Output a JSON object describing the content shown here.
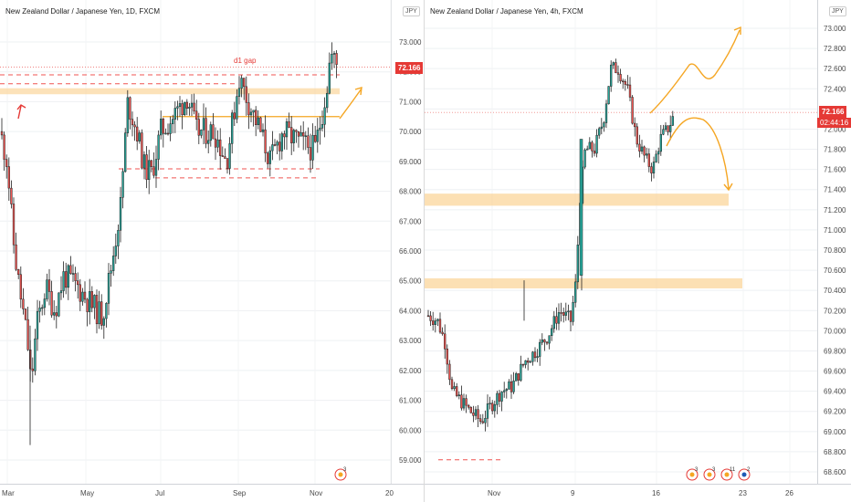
{
  "left_chart": {
    "title": "New Zealand Dollar / Japanese Yen, 1D, FXCM",
    "currency": "JPY",
    "current_price": "72.166",
    "annotation": "d1 gap",
    "yaxis": [
      {
        "label": "73.000",
        "value": 73.0
      },
      {
        "label": "72.000",
        "value": 72.0
      },
      {
        "label": "71.000",
        "value": 71.0
      },
      {
        "label": "70.000",
        "value": 70.0
      },
      {
        "label": "69.000",
        "value": 69.0
      },
      {
        "label": "68.000",
        "value": 68.0
      },
      {
        "label": "67.000",
        "value": 67.0
      },
      {
        "label": "66.000",
        "value": 66.0
      },
      {
        "label": "65.000",
        "value": 65.0
      },
      {
        "label": "64.000",
        "value": 64.0
      },
      {
        "label": "63.000",
        "value": 63.0
      },
      {
        "label": "62.000",
        "value": 62.0
      },
      {
        "label": "61.000",
        "value": 61.0
      },
      {
        "label": "60.000",
        "value": 60.0
      },
      {
        "label": "59.000",
        "value": 59.0
      }
    ],
    "xaxis": [
      "Mar",
      "May",
      "Jul",
      "Sep",
      "Nov",
      "20"
    ],
    "event_badge": "3",
    "colors": {
      "up": "#26a69a",
      "down": "#ef5350",
      "candle": "#1a1a1a",
      "zone": "#fbd69b",
      "arrow": "#f5a623",
      "price_line": "#e53935"
    }
  },
  "right_chart": {
    "title": "New Zealand Dollar / Japanese Yen, 4h, FXCM",
    "currency": "JPY",
    "current_price": "72.166",
    "countdown": "02:44:16",
    "yaxis": [
      {
        "label": "73.000",
        "value": 73.0
      },
      {
        "label": "72.800",
        "value": 72.8
      },
      {
        "label": "72.600",
        "value": 72.6
      },
      {
        "label": "72.400",
        "value": 72.4
      },
      {
        "label": "72.200",
        "value": 72.2
      },
      {
        "label": "72.000",
        "value": 72.0
      },
      {
        "label": "71.800",
        "value": 71.8
      },
      {
        "label": "71.600",
        "value": 71.6
      },
      {
        "label": "71.400",
        "value": 71.4
      },
      {
        "label": "71.200",
        "value": 71.2
      },
      {
        "label": "71.000",
        "value": 71.0
      },
      {
        "label": "70.800",
        "value": 70.8
      },
      {
        "label": "70.600",
        "value": 70.6
      },
      {
        "label": "70.400",
        "value": 70.4
      },
      {
        "label": "70.200",
        "value": 70.2
      },
      {
        "label": "70.000",
        "value": 70.0
      },
      {
        "label": "69.800",
        "value": 69.8
      },
      {
        "label": "69.600",
        "value": 69.6
      },
      {
        "label": "69.400",
        "value": 69.4
      },
      {
        "label": "69.200",
        "value": 69.2
      },
      {
        "label": "69.000",
        "value": 69.0
      },
      {
        "label": "68.800",
        "value": 68.8
      },
      {
        "label": "68.600",
        "value": 68.6
      }
    ],
    "xaxis": [
      "Nov",
      "9",
      "16",
      "23",
      "26"
    ],
    "event_badges": [
      "3",
      "3",
      "11",
      "2"
    ]
  }
}
